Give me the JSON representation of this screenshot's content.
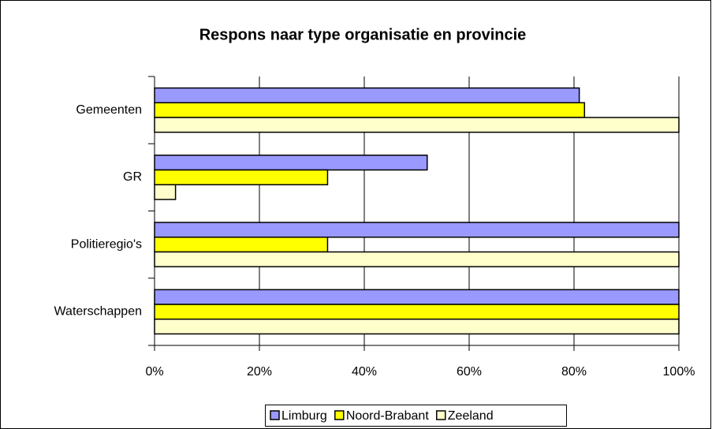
{
  "chart_data": {
    "type": "hbar",
    "title": "Respons naar type organisatie en provincie",
    "categories": [
      "Gemeenten",
      "GR",
      "Politieregio's",
      "Waterschappen"
    ],
    "series": [
      {
        "name": "Limburg",
        "color": "#9999ff",
        "values": [
          81,
          52,
          100,
          100
        ]
      },
      {
        "name": "Noord-Brabant",
        "color": "#ffff00",
        "values": [
          82,
          33,
          33,
          100
        ]
      },
      {
        "name": "Zeeland",
        "color": "#ffffcc",
        "values": [
          100,
          4,
          100,
          100
        ]
      }
    ],
    "xlim": [
      0,
      100
    ],
    "xticks": [
      {
        "value": 0,
        "label": "0%"
      },
      {
        "value": 20,
        "label": "20%"
      },
      {
        "value": 40,
        "label": "40%"
      },
      {
        "value": 60,
        "label": "60%"
      },
      {
        "value": 80,
        "label": "80%"
      },
      {
        "value": 100,
        "label": "100%"
      }
    ],
    "grid": true,
    "legend": "bottom"
  }
}
